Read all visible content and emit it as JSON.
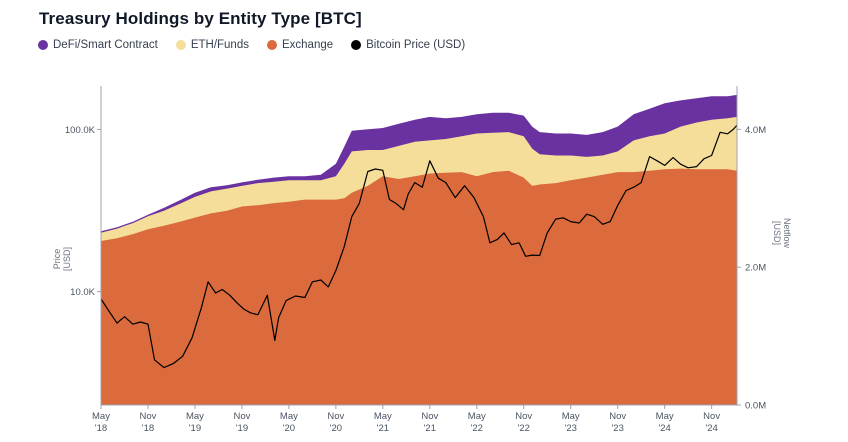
{
  "title": "Treasury Holdings by Entity Type [BTC]",
  "legend": [
    {
      "label": "DeFi/Smart Contract",
      "color": "#6a32a0"
    },
    {
      "label": "ETH/Funds",
      "color": "#f5de9a"
    },
    {
      "label": "Exchange",
      "color": "#db6a3c"
    },
    {
      "label": "Bitcoin Price (USD)",
      "color": "#000000"
    }
  ],
  "chart_data": {
    "type": "area",
    "title": "Treasury Holdings by Entity Type [BTC]",
    "y_left": {
      "label": "Price [USD]",
      "scale": "log",
      "ticks": [
        "10.0K",
        "100.0K"
      ],
      "range": [
        2000,
        180000
      ]
    },
    "y_right": {
      "label": "Netflow [USD]",
      "scale": "linear",
      "ticks": [
        "0.0M",
        "2.0M",
        "4.0M"
      ],
      "range": [
        0,
        4.6
      ]
    },
    "x_ticks": [
      {
        "m": "May",
        "y": "'18"
      },
      {
        "m": "Nov",
        "y": "'18"
      },
      {
        "m": "May",
        "y": "'19"
      },
      {
        "m": "Nov",
        "y": "'19"
      },
      {
        "m": "May",
        "y": "'20"
      },
      {
        "m": "Nov",
        "y": "'20"
      },
      {
        "m": "May",
        "y": "'21"
      },
      {
        "m": "Nov",
        "y": "'21"
      },
      {
        "m": "May",
        "y": "'22"
      },
      {
        "m": "Nov",
        "y": "'22"
      },
      {
        "m": "May",
        "y": "'23"
      },
      {
        "m": "Nov",
        "y": "'23"
      },
      {
        "m": "May",
        "y": "'24"
      },
      {
        "m": "Nov",
        "y": "'24"
      }
    ],
    "x": [
      2018.33,
      2018.5,
      2018.67,
      2018.83,
      2019.0,
      2019.17,
      2019.33,
      2019.5,
      2019.67,
      2019.83,
      2020.0,
      2020.17,
      2020.33,
      2020.5,
      2020.67,
      2020.83,
      2020.92,
      2021.0,
      2021.17,
      2021.33,
      2021.5,
      2021.67,
      2021.83,
      2022.0,
      2022.17,
      2022.33,
      2022.5,
      2022.67,
      2022.83,
      2022.92,
      2023.0,
      2023.17,
      2023.33,
      2023.5,
      2023.67,
      2023.83,
      2024.0,
      2024.17,
      2024.33,
      2024.5,
      2024.67,
      2024.83,
      2025.0,
      2025.1
    ],
    "series": [
      {
        "name": "Exchange",
        "color": "#db6a3c",
        "values": [
          2.38,
          2.42,
          2.48,
          2.55,
          2.6,
          2.66,
          2.72,
          2.78,
          2.82,
          2.88,
          2.9,
          2.93,
          2.95,
          2.98,
          2.98,
          2.98,
          3.0,
          3.08,
          3.18,
          3.32,
          3.28,
          3.32,
          3.36,
          3.37,
          3.38,
          3.32,
          3.38,
          3.4,
          3.3,
          3.18,
          3.2,
          3.22,
          3.26,
          3.3,
          3.34,
          3.38,
          3.38,
          3.4,
          3.42,
          3.43,
          3.42,
          3.42,
          3.42,
          3.4
        ]
      },
      {
        "name": "ETH/Funds",
        "color": "#f5de9a",
        "values": [
          2.5,
          2.56,
          2.64,
          2.74,
          2.82,
          2.92,
          3.02,
          3.1,
          3.14,
          3.18,
          3.22,
          3.24,
          3.26,
          3.26,
          3.26,
          3.32,
          3.5,
          3.68,
          3.7,
          3.7,
          3.76,
          3.82,
          3.84,
          3.86,
          3.9,
          3.94,
          3.95,
          3.96,
          3.9,
          3.72,
          3.64,
          3.62,
          3.62,
          3.6,
          3.62,
          3.68,
          3.84,
          3.9,
          3.94,
          4.04,
          4.1,
          4.14,
          4.16,
          4.18
        ]
      },
      {
        "name": "DeFi/Smart Contract",
        "color": "#6a32a0",
        "values": [
          2.52,
          2.58,
          2.66,
          2.76,
          2.86,
          2.97,
          3.08,
          3.16,
          3.19,
          3.23,
          3.27,
          3.3,
          3.32,
          3.32,
          3.34,
          3.5,
          3.75,
          3.98,
          4.0,
          4.02,
          4.08,
          4.14,
          4.18,
          4.16,
          4.18,
          4.22,
          4.24,
          4.24,
          4.2,
          4.04,
          3.96,
          3.94,
          3.94,
          3.92,
          3.96,
          4.04,
          4.22,
          4.3,
          4.38,
          4.42,
          4.45,
          4.48,
          4.48,
          4.5
        ]
      }
    ],
    "price": {
      "name": "Bitcoin Price (USD)",
      "color": "#000000",
      "x": [
        2018.33,
        2018.42,
        2018.5,
        2018.58,
        2018.67,
        2018.75,
        2018.83,
        2018.9,
        2019.0,
        2019.1,
        2019.2,
        2019.3,
        2019.4,
        2019.47,
        2019.55,
        2019.62,
        2019.7,
        2019.78,
        2019.85,
        2019.92,
        2020.0,
        2020.1,
        2020.18,
        2020.22,
        2020.3,
        2020.4,
        2020.5,
        2020.58,
        2020.67,
        2020.75,
        2020.83,
        2020.92,
        2021.0,
        2021.08,
        2021.17,
        2021.25,
        2021.33,
        2021.4,
        2021.47,
        2021.55,
        2021.6,
        2021.67,
        2021.75,
        2021.83,
        2021.92,
        2022.0,
        2022.1,
        2022.2,
        2022.3,
        2022.4,
        2022.47,
        2022.55,
        2022.62,
        2022.7,
        2022.78,
        2022.85,
        2022.92,
        2023.0,
        2023.08,
        2023.17,
        2023.25,
        2023.33,
        2023.42,
        2023.5,
        2023.58,
        2023.67,
        2023.75,
        2023.83,
        2023.92,
        2024.0,
        2024.08,
        2024.17,
        2024.25,
        2024.33,
        2024.42,
        2024.5,
        2024.58,
        2024.67,
        2024.75,
        2024.83,
        2024.92,
        2025.0,
        2025.06,
        2025.1
      ],
      "values": [
        9000,
        7500,
        6400,
        7000,
        6300,
        6500,
        6300,
        3800,
        3400,
        3600,
        4000,
        5200,
        8000,
        11500,
        9800,
        10300,
        9500,
        8500,
        7800,
        7400,
        7200,
        9500,
        5000,
        6900,
        8800,
        9400,
        9200,
        11500,
        11800,
        10700,
        13500,
        19000,
        29000,
        35000,
        55000,
        57000,
        56000,
        37000,
        35000,
        32000,
        40000,
        47000,
        44000,
        64000,
        50000,
        47000,
        38000,
        45000,
        38000,
        29000,
        20000,
        21000,
        23000,
        19500,
        20000,
        16500,
        16800,
        16700,
        23000,
        28000,
        28500,
        27000,
        26500,
        30000,
        29000,
        26000,
        27000,
        34000,
        42000,
        44000,
        47000,
        68000,
        64000,
        60000,
        67000,
        61000,
        58000,
        59000,
        66000,
        69000,
        96000,
        94000,
        100000,
        106000
      ]
    }
  }
}
